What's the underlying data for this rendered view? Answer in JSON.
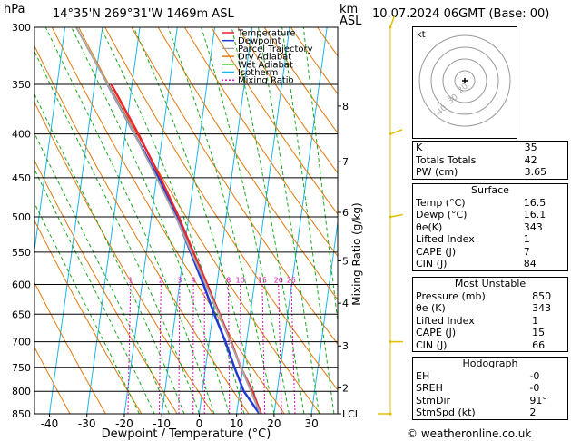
{
  "header": {
    "hpa_label": "hPa",
    "location": "14°35'N  269°31'W  1469m  ASL",
    "km_label": "km",
    "asl_label": "ASL",
    "datetime": "10.07.2024  06GMT  (Base: 00)"
  },
  "footer": {
    "copyright": "© weatheronline.co.uk"
  },
  "colors": {
    "temperature": "#e8262d",
    "dewpoint": "#2339d6",
    "parcel": "#a6a6a6",
    "dry_adiabat": "#e07a10",
    "wet_adiabat": "#19a81e",
    "isotherm": "#19b6e6",
    "mixing_ratio": "#d80fbf"
  },
  "legend": [
    {
      "label": "Temperature",
      "color": "#e8262d",
      "dash": ""
    },
    {
      "label": "Dewpoint",
      "color": "#2339d6",
      "dash": ""
    },
    {
      "label": "Parcel Trajectory",
      "color": "#a6a6a6",
      "dash": ""
    },
    {
      "label": "Dry Adiabat",
      "color": "#e07a10",
      "dash": ""
    },
    {
      "label": "Wet Adiabat",
      "color": "#19a81e",
      "dash": ""
    },
    {
      "label": "Isotherm",
      "color": "#19b6e6",
      "dash": ""
    },
    {
      "label": "Mixing Ratio",
      "color": "#d80fbf",
      "dash": "2,2"
    }
  ],
  "chart_data": {
    "type": "line",
    "subtype": "skew-T log-P diagram",
    "xlabel": "Dewpoint / Temperature (°C)",
    "ylabel": "hPa",
    "right_label": "Mixing Ratio (g/kg)",
    "x_ticks": [
      -40,
      -30,
      -20,
      -10,
      0,
      10,
      20,
      30
    ],
    "pressure_levels": [
      300,
      350,
      400,
      450,
      500,
      550,
      600,
      650,
      700,
      750,
      800,
      850
    ],
    "km_ticks": [
      {
        "p": 371,
        "label": "8"
      },
      {
        "p": 431,
        "label": "7"
      },
      {
        "p": 494,
        "label": "6"
      },
      {
        "p": 563,
        "label": "5"
      },
      {
        "p": 631,
        "label": "4"
      },
      {
        "p": 708,
        "label": "3"
      },
      {
        "p": 793,
        "label": "2"
      },
      {
        "p": 850,
        "label": "LCL"
      }
    ],
    "mixing_ratio_labels": [
      "1",
      "2",
      "3",
      "4",
      "5",
      "8",
      "10",
      "15",
      "20",
      "25"
    ],
    "mixing_ratio_label_pressure": 600,
    "ylim": [
      300,
      850
    ],
    "xlim": [
      -44,
      37
    ],
    "series": [
      {
        "name": "Temperature",
        "p": [
          850,
          800,
          750,
          700,
          650,
          600,
          550,
          500,
          450,
          400,
          350
        ],
        "t": [
          16.5,
          13.4,
          9.4,
          5.9,
          1.8,
          -2.6,
          -7.5,
          -12.7,
          -19.0,
          -26.5,
          -35.5
        ]
      },
      {
        "name": "Dewpoint",
        "p": [
          850,
          800,
          750,
          700,
          650,
          600,
          550,
          500,
          450,
          400,
          350
        ],
        "t": [
          16.1,
          11.1,
          7.7,
          4.4,
          0.4,
          -3.6,
          -8.2,
          -13.3,
          -19.6,
          -27.5,
          -36.5
        ]
      },
      {
        "name": "Parcel Trajectory",
        "p": [
          850,
          800,
          750,
          700,
          650,
          600,
          550,
          500,
          450,
          400,
          350,
          300
        ],
        "t": [
          16.3,
          13.0,
          9.5,
          5.7,
          1.6,
          -3.0,
          -8.0,
          -13.5,
          -20.0,
          -27.5,
          -36.5,
          -47.0
        ]
      }
    ],
    "wind_barbs": [
      {
        "p": 300,
        "dir": 200,
        "kt": 5
      },
      {
        "p": 400,
        "dir": 250,
        "kt": 10
      },
      {
        "p": 500,
        "dir": 260,
        "kt": 10
      },
      {
        "p": 700,
        "dir": 270,
        "kt": 5
      },
      {
        "p": 850,
        "dir": 90,
        "kt": 2
      }
    ],
    "hodograph": {
      "ring_labels": [
        "40",
        "30",
        "20"
      ],
      "unit_label": "kt"
    }
  },
  "indices": {
    "top": [
      {
        "label": "K",
        "value": "35"
      },
      {
        "label": "Totals Totals",
        "value": "42"
      },
      {
        "label": "PW (cm)",
        "value": "3.65"
      }
    ],
    "surface": {
      "title": "Surface",
      "rows": [
        {
          "label": "Temp (°C)",
          "value": "16.5"
        },
        {
          "label": "Dewp (°C)",
          "value": "16.1"
        },
        {
          "label": "θe(K)",
          "value": "343"
        },
        {
          "label": "Lifted Index",
          "value": "1"
        },
        {
          "label": "CAPE (J)",
          "value": "7"
        },
        {
          "label": "CIN (J)",
          "value": "84"
        }
      ]
    },
    "unstable": {
      "title": "Most Unstable",
      "rows": [
        {
          "label": "Pressure (mb)",
          "value": "850"
        },
        {
          "label": "θe (K)",
          "value": "343"
        },
        {
          "label": "Lifted Index",
          "value": "1"
        },
        {
          "label": "CAPE (J)",
          "value": "15"
        },
        {
          "label": "CIN (J)",
          "value": "66"
        }
      ]
    },
    "hodograph": {
      "title": "Hodograph",
      "rows": [
        {
          "label": "EH",
          "value": "-0"
        },
        {
          "label": "SREH",
          "value": "-0"
        },
        {
          "label": "StmDir",
          "value": "91°"
        },
        {
          "label": "StmSpd (kt)",
          "value": "2"
        }
      ]
    }
  }
}
